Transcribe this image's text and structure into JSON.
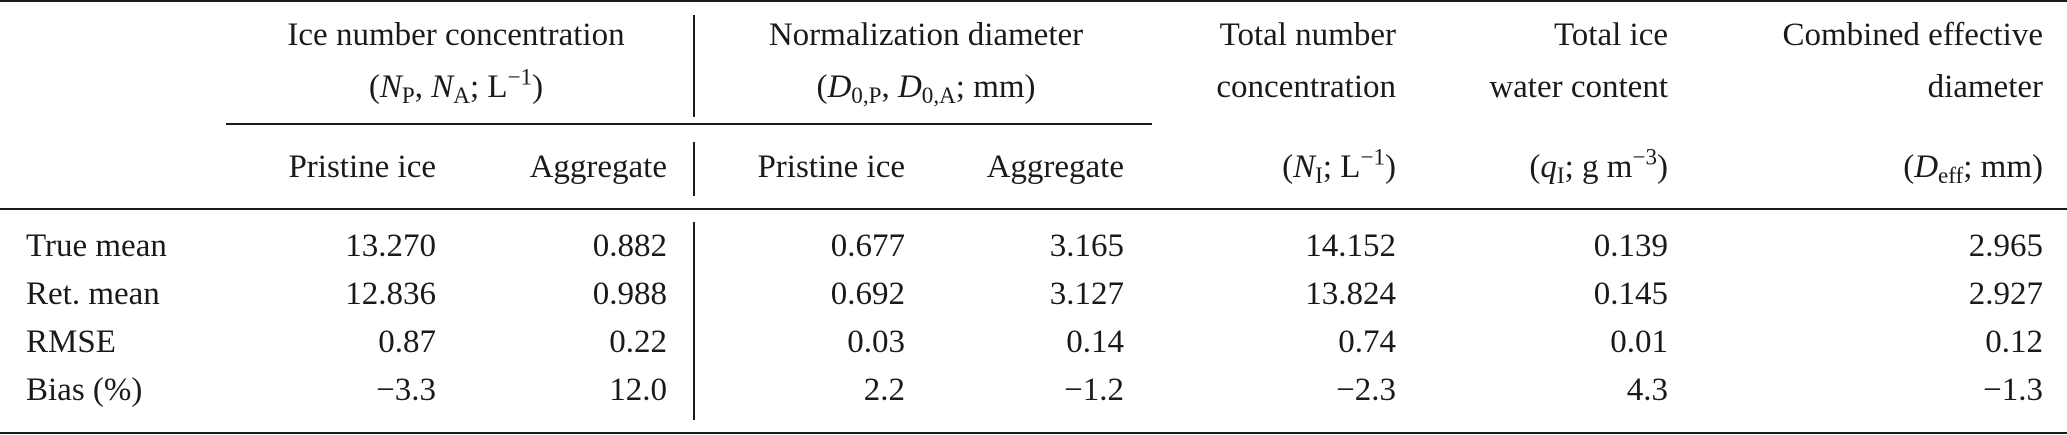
{
  "table": {
    "group_headers": {
      "ice_number": {
        "line1": "Ice number concentration",
        "line2": {
          "open": "(",
          "n": "N",
          "sub_p": "P",
          "comma": ", ",
          "n2": "N",
          "sub_a": "A",
          "semi": "; L",
          "sup": "−1",
          "close": ")"
        }
      },
      "normalization": {
        "line1": "Normalization diameter",
        "line2": {
          "open": "(",
          "d": "D",
          "sub_p": "0,P",
          "comma": ", ",
          "d2": "D",
          "sub_a": "0,A",
          "rest": "; mm)"
        }
      }
    },
    "single_headers": {
      "total_number": {
        "line1": "Total number",
        "line2": "concentration",
        "unit_open": "(",
        "sym": "N",
        "sub": "I",
        "unit_mid": "; L",
        "sup": "−1",
        "unit_close": ")"
      },
      "total_iwc": {
        "line1": "Total ice",
        "line2": "water content",
        "unit_open": "(",
        "sym": "q",
        "sub": "I",
        "unit_mid": "; g m",
        "sup": "−3",
        "unit_close": ")"
      },
      "effective_diameter": {
        "line1": "Combined effective",
        "line2": "diameter",
        "unit_open": "(",
        "sym": "D",
        "sub": "eff",
        "unit_mid": "; mm)"
      }
    },
    "sub_headers": [
      "Pristine ice",
      "Aggregate",
      "Pristine ice",
      "Aggregate"
    ],
    "rows": [
      {
        "label": "True mean",
        "values": [
          "13.270",
          "0.882",
          "0.677",
          "3.165",
          "14.152",
          "0.139",
          "2.965"
        ]
      },
      {
        "label": "Ret. mean",
        "values": [
          "12.836",
          "0.988",
          "0.692",
          "3.127",
          "13.824",
          "0.145",
          "2.927"
        ]
      },
      {
        "label": "RMSE",
        "values": [
          "0.87",
          "0.22",
          "0.03",
          "0.14",
          "0.74",
          "0.01",
          "0.12"
        ]
      },
      {
        "label": "Bias (%)",
        "values": [
          "−3.3",
          "12.0",
          "2.2",
          "−1.2",
          "−2.3",
          "4.3",
          "−1.3"
        ]
      }
    ]
  }
}
